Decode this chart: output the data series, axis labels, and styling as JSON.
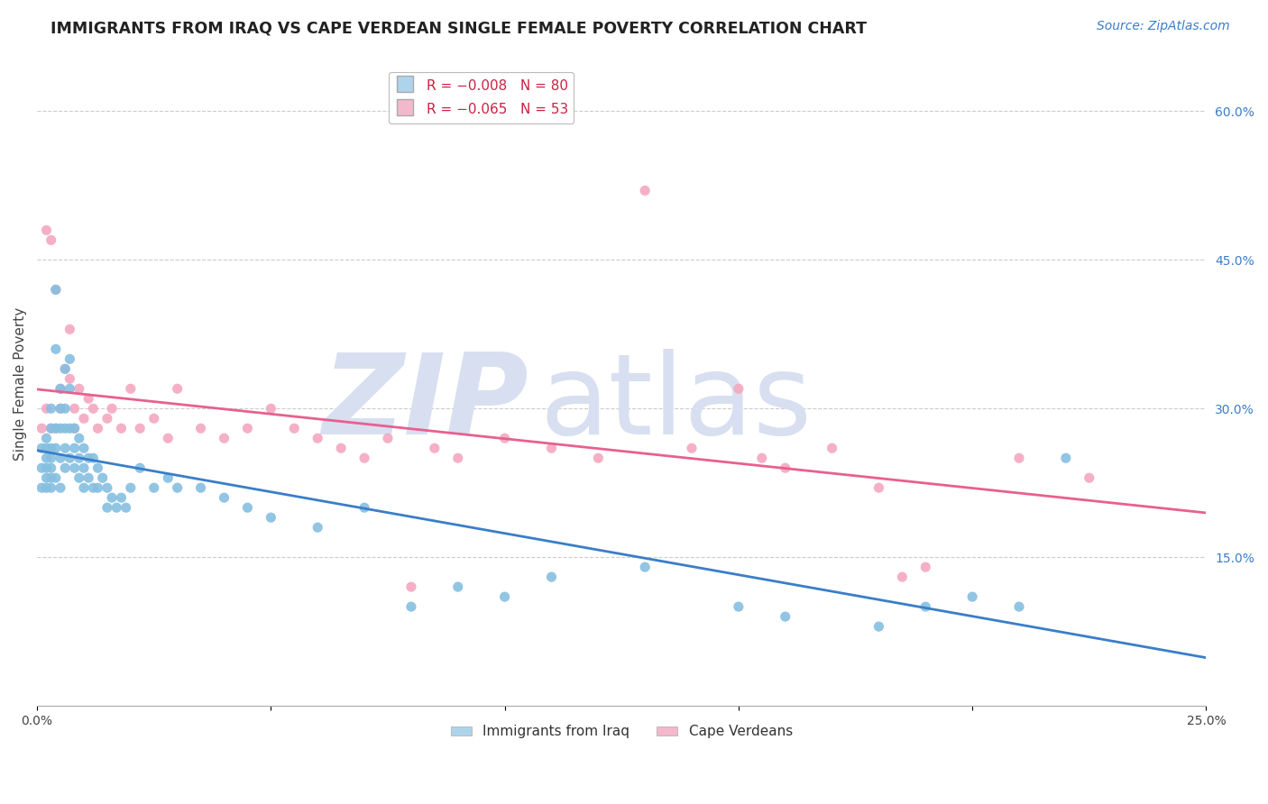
{
  "title": "IMMIGRANTS FROM IRAQ VS CAPE VERDEAN SINGLE FEMALE POVERTY CORRELATION CHART",
  "source": "Source: ZipAtlas.com",
  "ylabel": "Single Female Poverty",
  "xlim": [
    0.0,
    0.25
  ],
  "ylim": [
    0.0,
    0.65
  ],
  "xticks": [
    0.0,
    0.05,
    0.1,
    0.15,
    0.2,
    0.25
  ],
  "xticklabels": [
    "0.0%",
    "",
    "",
    "",
    "",
    "25.0%"
  ],
  "yticks_right": [
    0.15,
    0.3,
    0.45,
    0.6
  ],
  "ytick_labels_right": [
    "15.0%",
    "30.0%",
    "45.0%",
    "60.0%"
  ],
  "blue_scatter_color": "#85bfe0",
  "pink_scatter_color": "#f4a8c0",
  "blue_line_color": "#3a7ec8",
  "pink_line_color": "#e86090",
  "grid_color": "#cccccc",
  "watermark_color": "#d8dff0",
  "iraq_x": [
    0.001,
    0.001,
    0.001,
    0.002,
    0.002,
    0.002,
    0.002,
    0.002,
    0.002,
    0.003,
    0.003,
    0.003,
    0.003,
    0.003,
    0.003,
    0.003,
    0.004,
    0.004,
    0.004,
    0.004,
    0.004,
    0.005,
    0.005,
    0.005,
    0.005,
    0.005,
    0.006,
    0.006,
    0.006,
    0.006,
    0.006,
    0.007,
    0.007,
    0.007,
    0.007,
    0.008,
    0.008,
    0.008,
    0.009,
    0.009,
    0.009,
    0.01,
    0.01,
    0.01,
    0.011,
    0.011,
    0.012,
    0.012,
    0.013,
    0.013,
    0.014,
    0.015,
    0.015,
    0.016,
    0.017,
    0.018,
    0.019,
    0.02,
    0.022,
    0.025,
    0.028,
    0.03,
    0.035,
    0.04,
    0.045,
    0.05,
    0.06,
    0.07,
    0.08,
    0.09,
    0.1,
    0.11,
    0.13,
    0.15,
    0.16,
    0.18,
    0.19,
    0.2,
    0.21,
    0.22
  ],
  "iraq_y": [
    0.24,
    0.22,
    0.26,
    0.23,
    0.25,
    0.27,
    0.24,
    0.22,
    0.26,
    0.3,
    0.25,
    0.28,
    0.24,
    0.23,
    0.26,
    0.22,
    0.42,
    0.36,
    0.28,
    0.26,
    0.23,
    0.32,
    0.3,
    0.28,
    0.25,
    0.22,
    0.34,
    0.3,
    0.28,
    0.26,
    0.24,
    0.35,
    0.32,
    0.28,
    0.25,
    0.28,
    0.26,
    0.24,
    0.27,
    0.25,
    0.23,
    0.26,
    0.24,
    0.22,
    0.25,
    0.23,
    0.25,
    0.22,
    0.24,
    0.22,
    0.23,
    0.22,
    0.2,
    0.21,
    0.2,
    0.21,
    0.2,
    0.22,
    0.24,
    0.22,
    0.23,
    0.22,
    0.22,
    0.21,
    0.2,
    0.19,
    0.18,
    0.2,
    0.1,
    0.12,
    0.11,
    0.13,
    0.14,
    0.1,
    0.09,
    0.08,
    0.1,
    0.11,
    0.1,
    0.25
  ],
  "verde_x": [
    0.001,
    0.002,
    0.002,
    0.003,
    0.003,
    0.004,
    0.004,
    0.005,
    0.005,
    0.006,
    0.007,
    0.007,
    0.008,
    0.008,
    0.009,
    0.01,
    0.011,
    0.012,
    0.013,
    0.015,
    0.016,
    0.018,
    0.02,
    0.022,
    0.025,
    0.028,
    0.03,
    0.035,
    0.04,
    0.045,
    0.05,
    0.055,
    0.06,
    0.065,
    0.07,
    0.075,
    0.08,
    0.085,
    0.09,
    0.1,
    0.11,
    0.12,
    0.13,
    0.14,
    0.15,
    0.155,
    0.16,
    0.17,
    0.18,
    0.185,
    0.19,
    0.21,
    0.225
  ],
  "verde_y": [
    0.28,
    0.48,
    0.3,
    0.28,
    0.47,
    0.42,
    0.28,
    0.32,
    0.3,
    0.34,
    0.33,
    0.38,
    0.3,
    0.28,
    0.32,
    0.29,
    0.31,
    0.3,
    0.28,
    0.29,
    0.3,
    0.28,
    0.32,
    0.28,
    0.29,
    0.27,
    0.32,
    0.28,
    0.27,
    0.28,
    0.3,
    0.28,
    0.27,
    0.26,
    0.25,
    0.27,
    0.12,
    0.26,
    0.25,
    0.27,
    0.26,
    0.25,
    0.52,
    0.26,
    0.32,
    0.25,
    0.24,
    0.26,
    0.22,
    0.13,
    0.14,
    0.25,
    0.23
  ]
}
